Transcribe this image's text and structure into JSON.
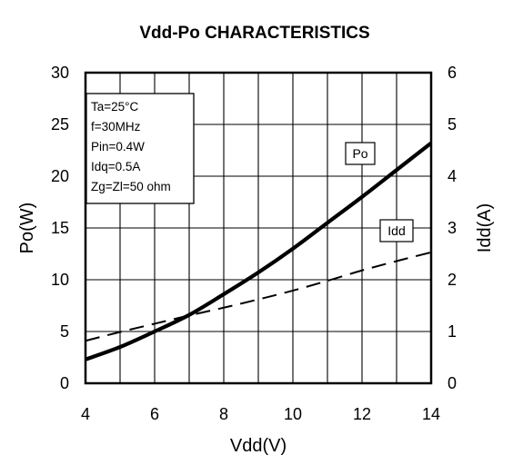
{
  "chart_data": {
    "type": "line",
    "title": "Vdd-Po CHARACTERISTICS",
    "xlabel": "Vdd(V)",
    "ylabel": "Po(W)",
    "y2label": "Idd(A)",
    "xlim": [
      4,
      14
    ],
    "ylim": [
      0,
      30
    ],
    "y2lim": [
      0,
      6
    ],
    "x_ticks": [
      "4",
      "6",
      "8",
      "10",
      "12",
      "14"
    ],
    "y_ticks": [
      "0",
      "5",
      "10",
      "15",
      "20",
      "25",
      "30"
    ],
    "y2_ticks": [
      "0",
      "1",
      "2",
      "3",
      "4",
      "5",
      "6"
    ],
    "grid": true,
    "conditions": [
      "Ta=25°C",
      "f=30MHz",
      "Pin=0.4W",
      "Idq=0.5A",
      "Zg=Zl=50 ohm"
    ],
    "series": [
      {
        "name": "Po",
        "axis": "left",
        "style": "solid",
        "x": [
          4,
          5,
          6,
          7,
          8,
          9,
          10,
          11,
          12,
          13,
          14
        ],
        "y": [
          2.3,
          3.5,
          5.0,
          6.6,
          8.6,
          10.7,
          13.0,
          15.5,
          18.0,
          20.6,
          23.2
        ]
      },
      {
        "name": "Idd",
        "axis": "right",
        "style": "dashed",
        "x": [
          4,
          5,
          6,
          7,
          8,
          9,
          10,
          11,
          12,
          13,
          14
        ],
        "y": [
          0.82,
          0.99,
          1.15,
          1.31,
          1.46,
          1.62,
          1.79,
          1.98,
          2.18,
          2.36,
          2.53
        ]
      }
    ]
  }
}
